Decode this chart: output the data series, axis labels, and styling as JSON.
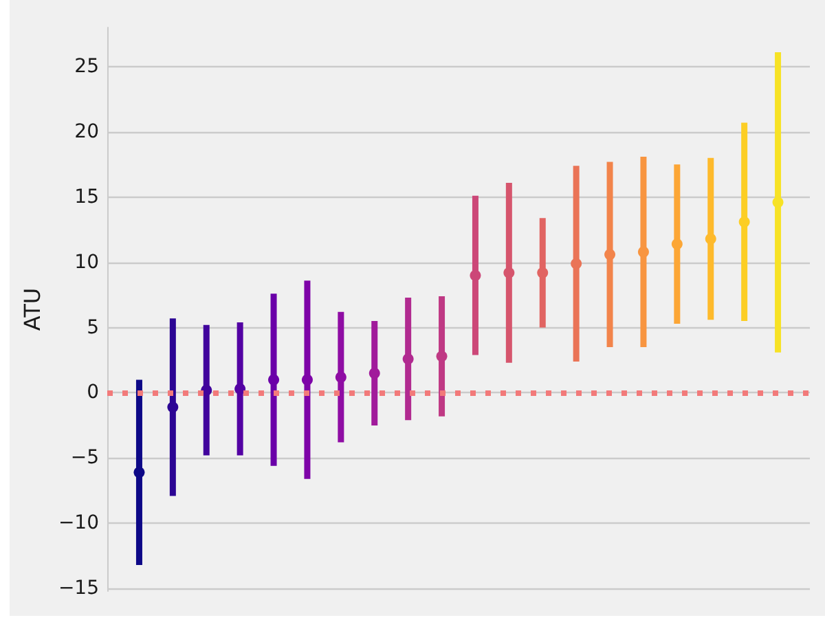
{
  "chart_data": {
    "type": "scatter",
    "ylabel": "ATU",
    "categories": [
      null,
      null,
      null,
      null,
      null,
      null,
      null,
      null,
      null,
      null,
      null,
      null,
      null,
      null,
      null,
      null,
      null,
      null,
      null,
      null
    ],
    "values": [
      -6.1,
      -1.1,
      0.2,
      0.3,
      1.0,
      1.0,
      1.2,
      1.5,
      2.6,
      2.8,
      9.0,
      9.2,
      9.2,
      9.9,
      10.6,
      10.8,
      11.4,
      11.8,
      13.1,
      14.6
    ],
    "errors": [
      7.1,
      6.8,
      5.0,
      5.1,
      6.6,
      7.6,
      5.0,
      4.0,
      4.7,
      4.6,
      6.1,
      6.9,
      4.2,
      7.5,
      7.1,
      7.3,
      6.1,
      6.2,
      7.6,
      11.5
    ],
    "colors": [
      "#0d0887",
      "#2c0594",
      "#41049d",
      "#5302a3",
      "#6a00a8",
      "#7e03a8",
      "#8f0da4",
      "#a11b9b",
      "#b12a90",
      "#bf3984",
      "#cc4778",
      "#d6556d",
      "#e16462",
      "#ea7457",
      "#f2844b",
      "#f89540",
      "#fca636",
      "#feba2c",
      "#fcce25",
      "#f7e225"
    ],
    "marker": "circle",
    "ylim": [
      -15.2,
      28.0
    ],
    "yticks": [
      {
        "value": -15,
        "label": "−15"
      },
      {
        "value": -10,
        "label": "−10"
      },
      {
        "value": -5,
        "label": "−5"
      },
      0,
      5,
      10,
      15,
      20,
      25
    ],
    "grid": "y",
    "ref_lines": [
      {
        "axis": "y",
        "value": 0,
        "color": "#f27a7a",
        "line_style": "dotted"
      }
    ]
  }
}
